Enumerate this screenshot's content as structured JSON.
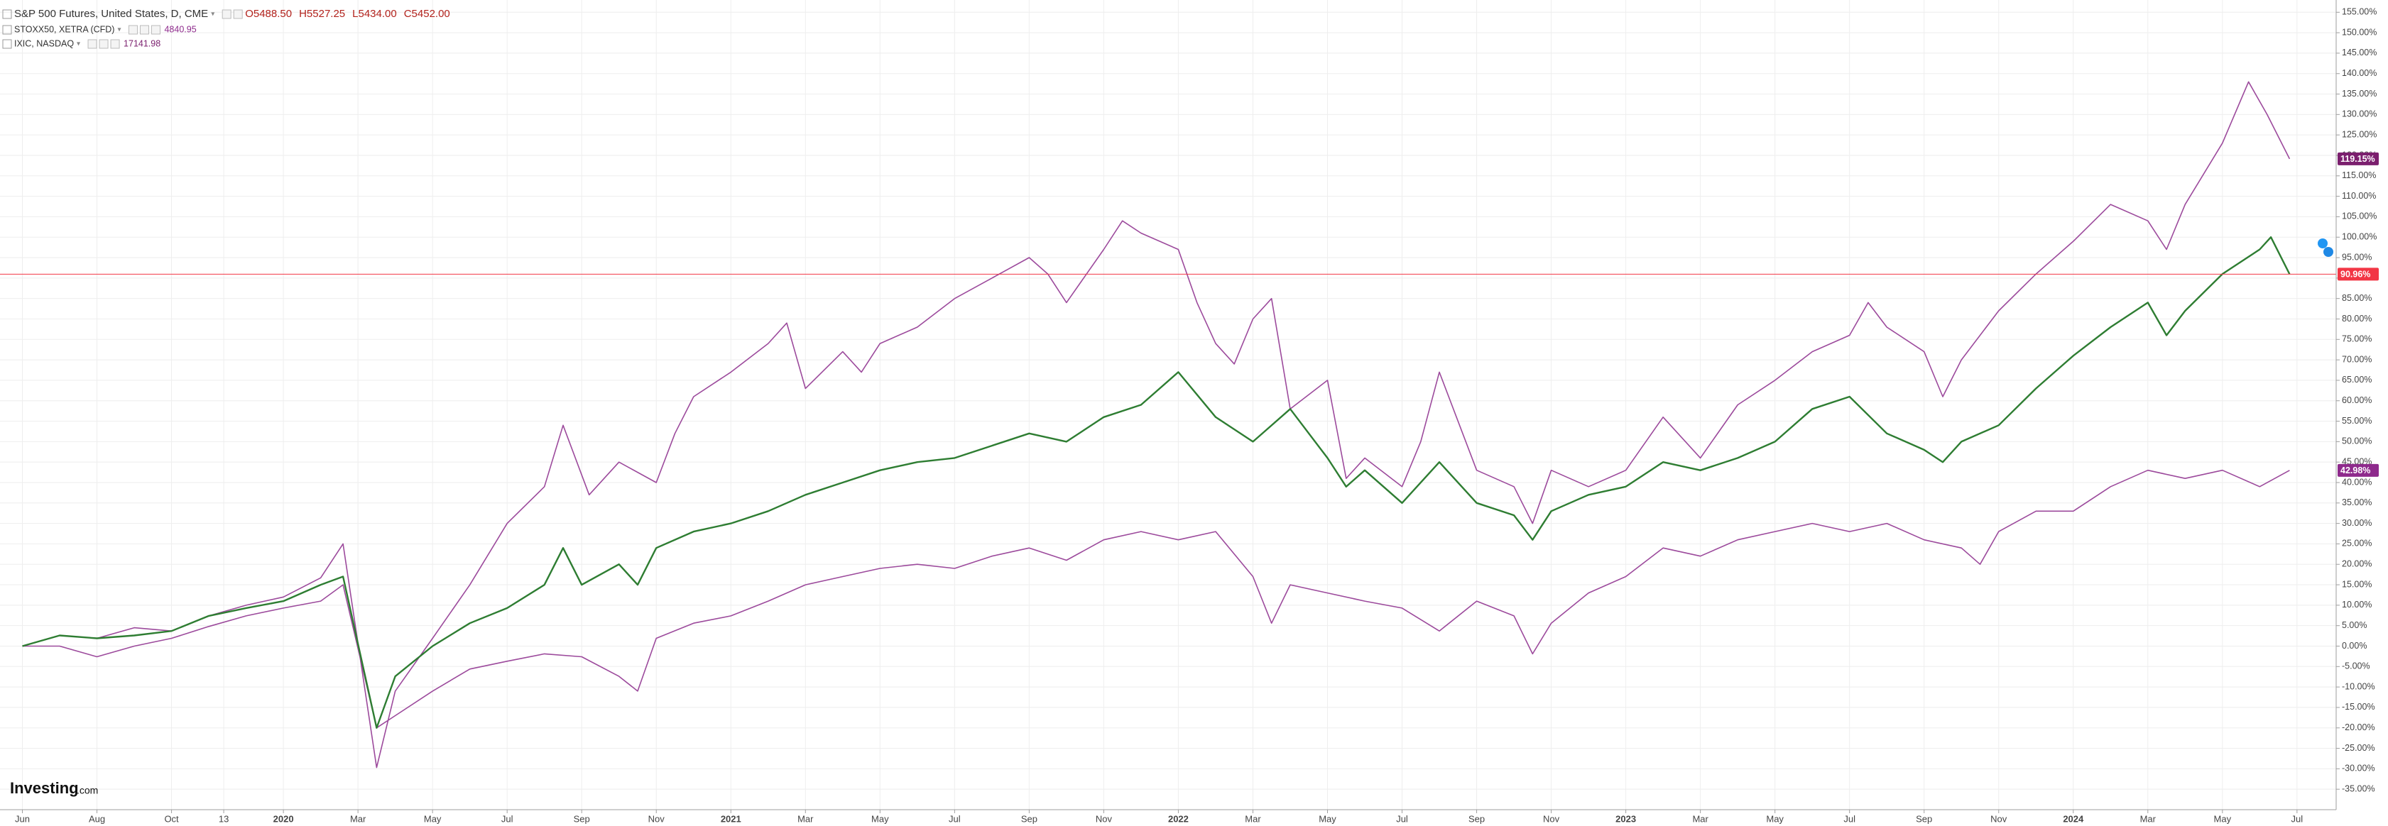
{
  "chart_data": {
    "type": "line",
    "logo": [
      "Investing",
      ".com"
    ],
    "grid": true,
    "xlim": [
      -0.6,
      62.05
    ],
    "ylim": [
      -40,
      158
    ],
    "xticks": [
      {
        "value": 0,
        "label": "Jun"
      },
      {
        "value": 2,
        "label": "Aug"
      },
      {
        "value": 4,
        "label": "Oct"
      },
      {
        "value": 5.4,
        "label": "13"
      },
      {
        "value": 7,
        "label": "2020"
      },
      {
        "value": 9,
        "label": "Mar"
      },
      {
        "value": 11,
        "label": "May"
      },
      {
        "value": 13,
        "label": "Jul"
      },
      {
        "value": 15,
        "label": "Sep"
      },
      {
        "value": 17,
        "label": "Nov"
      },
      {
        "value": 19,
        "label": "2021"
      },
      {
        "value": 21,
        "label": "Mar"
      },
      {
        "value": 23,
        "label": "May"
      },
      {
        "value": 25,
        "label": "Jul"
      },
      {
        "value": 27,
        "label": "Sep"
      },
      {
        "value": 29,
        "label": "Nov"
      },
      {
        "value": 31,
        "label": "2022"
      },
      {
        "value": 33,
        "label": "Mar"
      },
      {
        "value": 35,
        "label": "May"
      },
      {
        "value": 37,
        "label": "Jul"
      },
      {
        "value": 39,
        "label": "Sep"
      },
      {
        "value": 41,
        "label": "Nov"
      },
      {
        "value": 43,
        "label": "2023"
      },
      {
        "value": 45,
        "label": "Mar"
      },
      {
        "value": 47,
        "label": "May"
      },
      {
        "value": 49,
        "label": "Jul"
      },
      {
        "value": 51,
        "label": "Sep"
      },
      {
        "value": 53,
        "label": "Nov"
      },
      {
        "value": 55,
        "label": "2024"
      },
      {
        "value": 57,
        "label": "Mar"
      },
      {
        "value": 59,
        "label": "May"
      },
      {
        "value": 61,
        "label": "Jul"
      }
    ],
    "yticks": [
      {
        "value": -35,
        "label": "-35.00%"
      },
      {
        "value": -30,
        "label": "-30.00%"
      },
      {
        "value": -25,
        "label": "-25.00%"
      },
      {
        "value": -20,
        "label": "-20.00%"
      },
      {
        "value": -15,
        "label": "-15.00%"
      },
      {
        "value": -10,
        "label": "-10.00%"
      },
      {
        "value": -5,
        "label": "-5.00%"
      },
      {
        "value": 0,
        "label": "0.00%"
      },
      {
        "value": 5,
        "label": "5.00%"
      },
      {
        "value": 10,
        "label": "10.00%"
      },
      {
        "value": 15,
        "label": "15.00%"
      },
      {
        "value": 20,
        "label": "20.00%"
      },
      {
        "value": 25,
        "label": "25.00%"
      },
      {
        "value": 30,
        "label": "30.00%"
      },
      {
        "value": 35,
        "label": "35.00%"
      },
      {
        "value": 40,
        "label": "40.00%"
      },
      {
        "value": 45,
        "label": "45.00%"
      },
      {
        "value": 50,
        "label": "50.00%"
      },
      {
        "value": 55,
        "label": "55.00%"
      },
      {
        "value": 60,
        "label": "60.00%"
      },
      {
        "value": 65,
        "label": "65.00%"
      },
      {
        "value": 70,
        "label": "70.00%"
      },
      {
        "value": 75,
        "label": "75.00%"
      },
      {
        "value": 80,
        "label": "80.00%"
      },
      {
        "value": 85,
        "label": "85.00%"
      },
      {
        "value": 90,
        "label": "90.00%"
      },
      {
        "value": 95,
        "label": "95.00%"
      },
      {
        "value": 100,
        "label": "100.00%"
      },
      {
        "value": 105,
        "label": "105.00%"
      },
      {
        "value": 110,
        "label": "110.00%"
      },
      {
        "value": 115,
        "label": "115.00%"
      },
      {
        "value": 120,
        "label": "120.00%"
      },
      {
        "value": 125,
        "label": "125.00%"
      },
      {
        "value": 130,
        "label": "130.00%"
      },
      {
        "value": 135,
        "label": "135.00%"
      },
      {
        "value": 140,
        "label": "140.00%"
      },
      {
        "value": 145,
        "label": "145.00%"
      },
      {
        "value": 150,
        "label": "150.00%"
      },
      {
        "value": 155,
        "label": "155.00%"
      }
    ],
    "series": [
      {
        "name": "S&P 500 Futures, United States, D, CME",
        "color": "#2e7d32",
        "quote": [
          "O5488.50",
          "H5527.25",
          "L5434.00",
          "C5452.00"
        ],
        "last_label": {
          "value": 90.96,
          "label": "90.96%"
        },
        "label_color": "#f23645",
        "x": [
          0,
          1,
          2,
          3,
          4,
          5,
          6,
          7,
          8,
          8.6,
          9.5,
          10,
          11,
          12,
          13,
          14,
          14.5,
          15,
          16,
          16.5,
          17,
          18,
          19,
          20,
          21,
          22,
          23,
          24,
          25,
          26,
          27,
          28,
          29,
          30,
          31,
          32,
          33,
          34,
          35,
          35.5,
          36,
          37,
          38,
          39,
          40,
          40.5,
          41,
          42,
          43,
          44,
          45,
          46,
          47,
          48,
          49,
          50,
          51,
          51.5,
          52,
          53,
          54,
          55,
          56,
          57,
          57.5,
          58,
          59,
          60,
          60.3,
          60.8
        ],
        "values": [
          0,
          2.6,
          1.9,
          2.6,
          3.7,
          7.4,
          9.3,
          11,
          15,
          17,
          -20,
          -7.4,
          0,
          5.6,
          9.3,
          15,
          24,
          15,
          20,
          15,
          24,
          28,
          30,
          33,
          37,
          40,
          43,
          45,
          46,
          49,
          52,
          50,
          56,
          59,
          67,
          56,
          50,
          58,
          46,
          39,
          43,
          35,
          45,
          35,
          32,
          26,
          33,
          37,
          39,
          45,
          43,
          46,
          50,
          58,
          61,
          52,
          48,
          45,
          50,
          54,
          63,
          71,
          78,
          84,
          76,
          82,
          91,
          97,
          100,
          90.96
        ]
      },
      {
        "name": "STOXX50, XETRA (CFD)",
        "color": "#9c4a9c",
        "last": "4840.95",
        "last_label": {
          "value": 42.98,
          "label": "42.98%"
        },
        "label_color": "#8e2a8c",
        "x": [
          0,
          1,
          2,
          3,
          4,
          5,
          6,
          7,
          8,
          8.6,
          9.5,
          10,
          11,
          12,
          13,
          14,
          15,
          16,
          16.5,
          17,
          18,
          19,
          20,
          21,
          22,
          23,
          24,
          25,
          26,
          27,
          28,
          29,
          30,
          31,
          32,
          33,
          33.5,
          34,
          35,
          36,
          37,
          38,
          39,
          40,
          40.5,
          41,
          42,
          43,
          44,
          45,
          46,
          47,
          48,
          49,
          50,
          51,
          52,
          52.5,
          53,
          54,
          55,
          56,
          57,
          58,
          59,
          60,
          60.8
        ],
        "values": [
          0,
          0,
          -2.6,
          0,
          1.9,
          4.8,
          7.4,
          9.3,
          11,
          15,
          -20,
          -17,
          -11,
          -5.6,
          -3.7,
          -1.9,
          -2.6,
          -7.4,
          -11,
          1.9,
          5.6,
          7.4,
          11,
          15,
          17,
          19,
          20,
          19,
          22,
          24,
          21,
          26,
          28,
          26,
          28,
          17,
          5.6,
          15,
          13,
          11,
          9.3,
          3.7,
          11,
          7.4,
          -1.9,
          5.6,
          13,
          17,
          24,
          22,
          26,
          28,
          30,
          28,
          30,
          26,
          24,
          20,
          28,
          33,
          33,
          39,
          43,
          41,
          43,
          39,
          42.98
        ]
      },
      {
        "name": "IXIC, NASDAQ",
        "color": "#9c4a9c",
        "last": "17141.98",
        "last_label": {
          "value": 119.15,
          "label": "119.15%"
        },
        "label_color": "#7b1f6e",
        "x": [
          0,
          1,
          2,
          3,
          4,
          5,
          6,
          7,
          8,
          8.6,
          9.5,
          10,
          11,
          12,
          13,
          14,
          14.5,
          15.2,
          16,
          17,
          17.5,
          18,
          19,
          20,
          20.5,
          21,
          22,
          22.5,
          23,
          24,
          25,
          26,
          27,
          27.5,
          28,
          29,
          29.5,
          30,
          31,
          31.5,
          32,
          32.5,
          33,
          33.5,
          34,
          35,
          35.5,
          36,
          37,
          37.5,
          38,
          39,
          40,
          40.5,
          41,
          42,
          43,
          44,
          45,
          46,
          47,
          48,
          49,
          49.5,
          50,
          51,
          51.5,
          52,
          53,
          54,
          55,
          56,
          57,
          57.5,
          58,
          59,
          59.7,
          60.2,
          60.8
        ],
        "values": [
          0,
          2.6,
          1.9,
          4.5,
          3.7,
          7.4,
          10,
          12,
          16.7,
          25,
          -29.7,
          -11,
          1.9,
          15,
          30,
          39,
          54,
          37,
          45,
          40,
          52,
          61,
          67,
          74,
          79,
          63,
          72,
          67,
          74,
          78,
          85,
          90,
          95,
          91,
          84,
          97,
          104,
          101,
          97,
          84,
          74,
          69,
          80,
          85,
          58,
          65,
          41,
          46,
          39,
          50,
          67,
          43,
          39,
          30,
          43,
          39,
          43,
          56,
          46,
          59,
          65,
          72,
          76,
          84,
          78,
          72,
          61,
          70,
          82,
          91,
          99,
          108,
          104,
          97,
          108,
          123,
          138,
          130,
          119.15
        ]
      }
    ]
  }
}
